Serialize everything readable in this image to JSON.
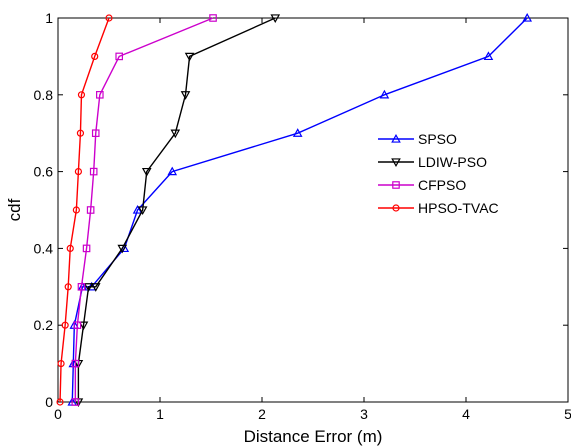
{
  "chart_data": {
    "type": "line",
    "xlabel": "Distance Error (m)",
    "ylabel": "cdf",
    "xlim": [
      0,
      5
    ],
    "ylim": [
      0,
      1
    ],
    "xticks": [
      0,
      1,
      2,
      3,
      4,
      5
    ],
    "yticks": [
      0,
      0.2,
      0.4,
      0.6,
      0.8,
      1
    ],
    "grid": false,
    "legend_position": "right",
    "series": [
      {
        "name": "SPSO",
        "color": "#0000ff",
        "marker": "triangle-up",
        "x": [
          0.14,
          0.15,
          0.16,
          0.24,
          0.33,
          0.65,
          0.78,
          1.12,
          2.35,
          3.2,
          4.22,
          4.6
        ],
        "y": [
          0.0,
          0.1,
          0.2,
          0.3,
          0.3,
          0.4,
          0.5,
          0.6,
          0.7,
          0.8,
          0.9,
          1.0
        ]
      },
      {
        "name": "LDIW-PSO",
        "color": "#000000",
        "marker": "triangle-down",
        "x": [
          0.2,
          0.2,
          0.25,
          0.3,
          0.37,
          0.63,
          0.83,
          0.87,
          1.15,
          1.25,
          1.29,
          2.13
        ],
        "y": [
          0.0,
          0.1,
          0.2,
          0.3,
          0.3,
          0.4,
          0.5,
          0.6,
          0.7,
          0.8,
          0.9,
          1.0
        ]
      },
      {
        "name": "CFPSO",
        "color": "#cc00cc",
        "marker": "square",
        "x": [
          0.17,
          0.17,
          0.19,
          0.23,
          0.28,
          0.32,
          0.35,
          0.37,
          0.41,
          0.6,
          1.52
        ],
        "y": [
          0.0,
          0.1,
          0.2,
          0.3,
          0.4,
          0.5,
          0.6,
          0.7,
          0.8,
          0.9,
          1.0
        ]
      },
      {
        "name": "HPSO-TVAC",
        "color": "#ff0000",
        "marker": "circle",
        "x": [
          0.02,
          0.03,
          0.07,
          0.1,
          0.12,
          0.18,
          0.2,
          0.22,
          0.23,
          0.36,
          0.5
        ],
        "y": [
          0.0,
          0.1,
          0.2,
          0.3,
          0.4,
          0.5,
          0.6,
          0.7,
          0.8,
          0.9,
          1.0
        ]
      }
    ]
  }
}
